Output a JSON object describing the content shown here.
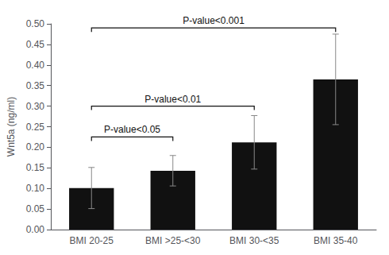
{
  "chart_data": {
    "type": "bar",
    "categories": [
      "BMI 20-25",
      "BMI >25-<30",
      "BMI 30-<35",
      "BMI 35-40"
    ],
    "values": [
      0.101,
      0.143,
      0.212,
      0.365
    ],
    "errors": [
      0.05,
      0.037,
      0.065,
      0.11
    ],
    "color": "#111111",
    "ylabel": "Wnt5a (ng/ml)",
    "ylim": [
      0,
      0.5
    ],
    "yticks": [
      {
        "value": 0,
        "label": "0.00"
      },
      0.05,
      {
        "value": 0.1,
        "label": "0.10"
      },
      0.15,
      {
        "value": 0.2,
        "label": "0.20"
      },
      0.25,
      {
        "value": 0.3,
        "label": "0.30"
      },
      0.35,
      {
        "value": 0.4,
        "label": "0.40"
      },
      0.45,
      {
        "value": 0.5,
        "label": "0.50"
      }
    ],
    "grid": false,
    "annotations": [
      {
        "text": "P-value<0.05",
        "from": "BMI 20-25",
        "to": "BMI >25-<30",
        "y": 0.225
      },
      {
        "text": "P-value<0.01",
        "from": "BMI 20-25",
        "to": "BMI 30-<35",
        "y": 0.3
      },
      {
        "text": "P-value<0.001",
        "from": "BMI 20-25",
        "to": "BMI 35-40",
        "y": 0.49
      }
    ]
  }
}
